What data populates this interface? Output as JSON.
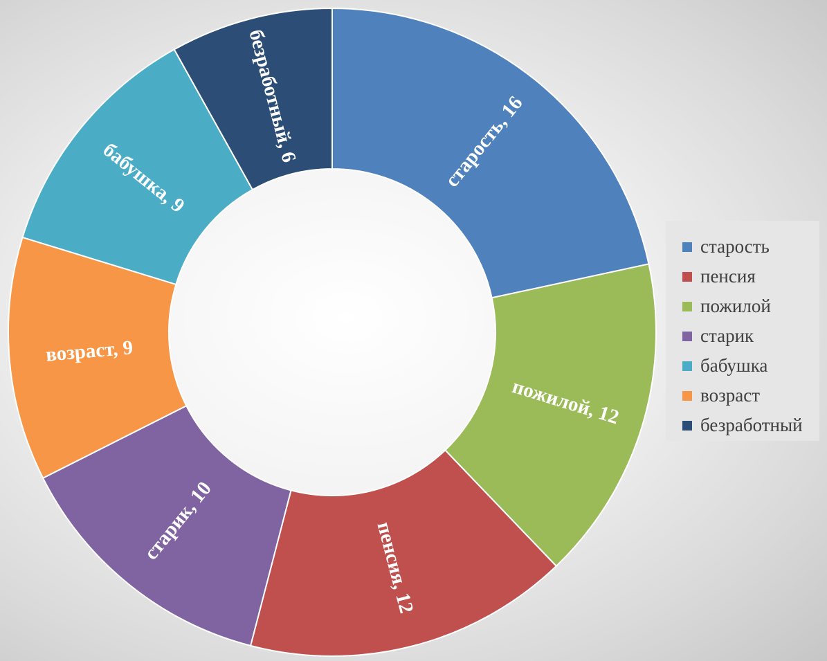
{
  "chart_data": {
    "type": "pie",
    "variant": "donut",
    "title": "",
    "categories": [
      "старость",
      "пенсия",
      "пожилой",
      "старик",
      "бабушка",
      "возраст",
      "безработный"
    ],
    "slices": [
      {
        "label": "старость",
        "value": 16,
        "color": "#4f81bd"
      },
      {
        "label": "пожилой",
        "value": 12,
        "color": "#9bbb59"
      },
      {
        "label": "пенсия",
        "value": 12,
        "color": "#c0504d"
      },
      {
        "label": "старик",
        "value": 10,
        "color": "#8064a2"
      },
      {
        "label": "возраст",
        "value": 9,
        "color": "#f79646"
      },
      {
        "label": "бабушка",
        "value": 9,
        "color": "#4bacc6"
      },
      {
        "label": "безработный",
        "value": 6,
        "color": "#2c4d75"
      }
    ],
    "legend": {
      "position": "right",
      "items": [
        {
          "label": "старость",
          "color": "#4f81bd"
        },
        {
          "label": "пенсия",
          "color": "#c0504d"
        },
        {
          "label": "пожилой",
          "color": "#9bbb59"
        },
        {
          "label": "старик",
          "color": "#8064a2"
        },
        {
          "label": "бабушка",
          "color": "#4bacc6"
        },
        {
          "label": "возраст",
          "color": "#f79646"
        },
        {
          "label": "безработный",
          "color": "#2c4d75"
        }
      ]
    }
  }
}
